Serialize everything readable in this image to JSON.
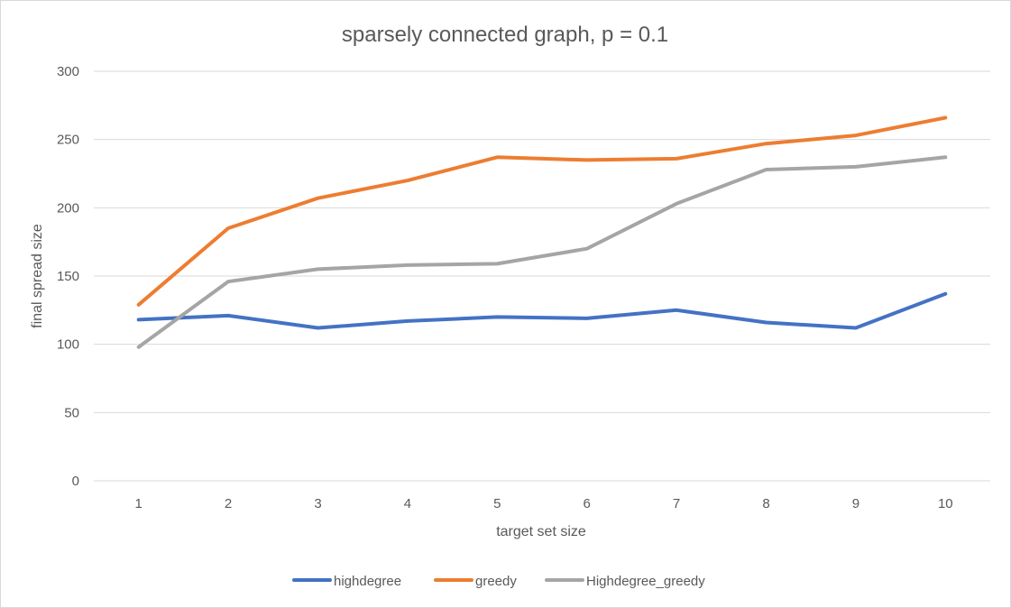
{
  "chart_data": {
    "type": "line",
    "title": "sparsely connected graph, p = 0.1",
    "xlabel": "target set size",
    "ylabel": "final spread size",
    "categories": [
      "1",
      "2",
      "3",
      "4",
      "5",
      "6",
      "7",
      "8",
      "9",
      "10"
    ],
    "ylim": [
      0,
      300
    ],
    "yticks": [
      "0",
      "50",
      "100",
      "150",
      "200",
      "250",
      "300"
    ],
    "grid": true,
    "legend_position": "bottom",
    "series": [
      {
        "name": "highdegree",
        "color": "#4472c4",
        "values": [
          118,
          121,
          112,
          117,
          120,
          119,
          125,
          116,
          112,
          137
        ]
      },
      {
        "name": "greedy",
        "color": "#ed7d31",
        "values": [
          129,
          185,
          207,
          220,
          237,
          235,
          236,
          247,
          253,
          266
        ]
      },
      {
        "name": "Highdegree_greedy",
        "color": "#a5a5a5",
        "values": [
          98,
          146,
          155,
          158,
          159,
          170,
          203,
          228,
          230,
          237
        ]
      }
    ]
  }
}
